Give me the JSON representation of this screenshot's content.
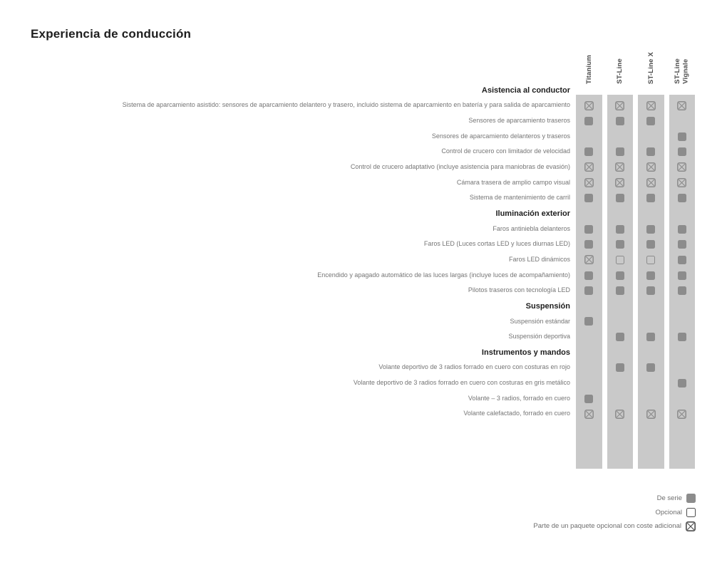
{
  "page_title": "Experiencia de conducción",
  "table": {
    "columns": [
      "Titanium",
      "ST-Line",
      "ST-Line X",
      "ST-Line\nVignale"
    ],
    "rows": [
      {
        "type": "section",
        "label": "Asistencia al conductor"
      },
      {
        "type": "feature",
        "label": "Sistema de aparcamiento asistido: sensores de aparcamiento delantero y trasero, incluido sistema de aparcamiento en batería y para salida de aparcamiento",
        "values": [
          "package",
          "package",
          "package",
          "package"
        ]
      },
      {
        "type": "feature",
        "label": "Sensores de aparcamiento traseros",
        "values": [
          "standard",
          "standard",
          "standard",
          ""
        ]
      },
      {
        "type": "feature",
        "label": "Sensores de aparcamiento delanteros y traseros",
        "values": [
          "",
          "",
          "",
          "standard"
        ]
      },
      {
        "type": "feature",
        "label": "Control de crucero con limitador de velocidad",
        "values": [
          "standard",
          "standard",
          "standard",
          "standard"
        ]
      },
      {
        "type": "feature",
        "label": "Control de crucero adaptativo (incluye asistencia para maniobras de evasión)",
        "values": [
          "package",
          "package",
          "package",
          "package"
        ]
      },
      {
        "type": "feature",
        "label": "Cámara trasera de amplio campo visual",
        "values": [
          "package",
          "package",
          "package",
          "package"
        ]
      },
      {
        "type": "feature",
        "label": "Sistema de mantenimiento de carril",
        "values": [
          "standard",
          "standard",
          "standard",
          "standard"
        ]
      },
      {
        "type": "section",
        "label": "Iluminación exterior"
      },
      {
        "type": "feature",
        "label": "Faros antiniebla delanteros",
        "values": [
          "standard",
          "standard",
          "standard",
          "standard"
        ]
      },
      {
        "type": "feature",
        "label": "Faros LED (Luces cortas LED y luces diurnas LED)",
        "values": [
          "standard",
          "standard",
          "standard",
          "standard"
        ]
      },
      {
        "type": "feature",
        "label": "Faros LED dinámicos",
        "values": [
          "package",
          "optional",
          "optional",
          "standard"
        ]
      },
      {
        "type": "feature",
        "label": "Encendido y apagado automático de las luces largas (incluye luces de acompañamiento)",
        "values": [
          "standard",
          "standard",
          "standard",
          "standard"
        ]
      },
      {
        "type": "feature",
        "label": "Pilotos traseros con tecnología LED",
        "values": [
          "standard",
          "standard",
          "standard",
          "standard"
        ]
      },
      {
        "type": "section",
        "label": "Suspensión"
      },
      {
        "type": "feature",
        "label": "Suspensión estándar",
        "values": [
          "standard",
          "",
          "",
          ""
        ]
      },
      {
        "type": "feature",
        "label": "Suspensión deportiva",
        "values": [
          "",
          "standard",
          "standard",
          "standard"
        ]
      },
      {
        "type": "section",
        "label": "Instrumentos y mandos"
      },
      {
        "type": "feature",
        "label": "Volante deportivo de 3 radios forrado en cuero con costuras en rojo",
        "values": [
          "",
          "standard",
          "standard",
          ""
        ]
      },
      {
        "type": "feature",
        "label": "Volante deportivo de 3 radios forrado en cuero con costuras en gris metálico",
        "values": [
          "",
          "",
          "",
          "standard"
        ]
      },
      {
        "type": "feature",
        "label": "Volante – 3 radios, forrado en cuero",
        "values": [
          "standard",
          "",
          "",
          ""
        ]
      },
      {
        "type": "feature",
        "label": "Volante calefactado, forrado en cuero",
        "values": [
          "package",
          "package",
          "package",
          "package"
        ]
      }
    ]
  },
  "legend": [
    {
      "label": "De serie",
      "symbol": "standard"
    },
    {
      "label": "Opcional",
      "symbol": "optional"
    },
    {
      "label": "Parte de un paquete opcional con coste adicional",
      "symbol": "package"
    }
  ],
  "colors": {
    "band": "#c9c9c9",
    "symbol": "#8c8c8c",
    "label_text": "#757575",
    "heading_text": "#1d1d1d",
    "column_header_text": "#4d4d4d",
    "legend_text": "#6e6e6e",
    "legend_symbol": "#4d4d4d"
  }
}
